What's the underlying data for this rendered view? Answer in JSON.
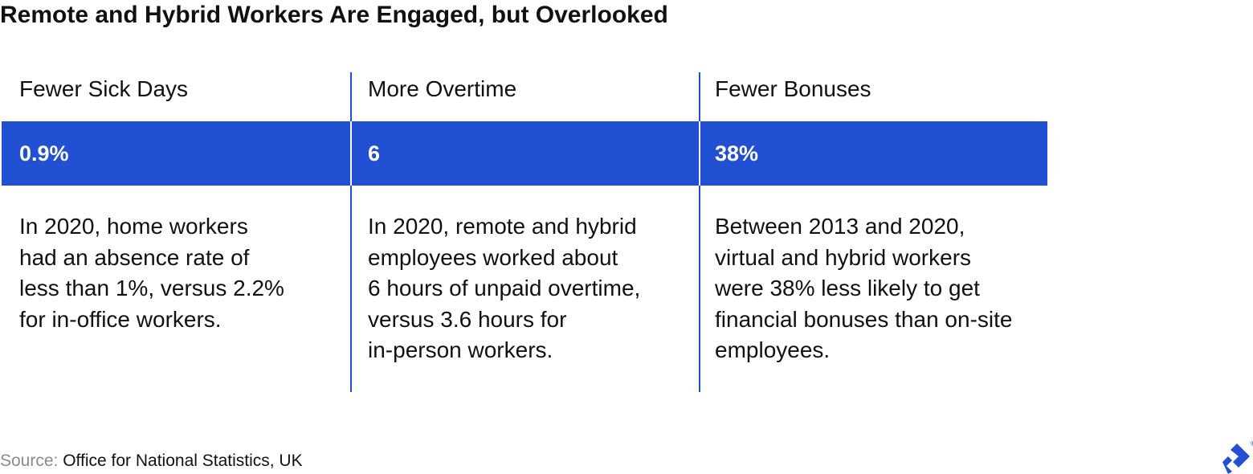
{
  "title": "Remote and Hybrid Workers Are Engaged, but Overlooked",
  "source": {
    "label": "Source:",
    "text": "Office for National Statistics, UK"
  },
  "colors": {
    "accent": "#2150d3",
    "value_text": "#ffffff",
    "source_label": "#8a8a8a"
  },
  "logo": {
    "icon": "toptal-logo-icon",
    "mark": "®"
  },
  "chart_data": {
    "type": "table",
    "columns": [
      {
        "heading": "Fewer Sick Days",
        "value": "0.9%",
        "description": "In 2020, home workers\nhad an absence rate of\nless than 1%, versus 2.2%\nfor in-office workers."
      },
      {
        "heading": "More Overtime",
        "value": "6",
        "description": "In 2020, remote and hybrid\nemployees worked about\n6 hours of unpaid overtime,\nversus 3.6 hours for\nin-person workers."
      },
      {
        "heading": "Fewer Bonuses",
        "value": "38%",
        "description": "Between 2013 and 2020,\nvirtual and hybrid workers\nwere 38% less likely to get\nfinancial bonuses than on-site\nemployees."
      }
    ]
  }
}
